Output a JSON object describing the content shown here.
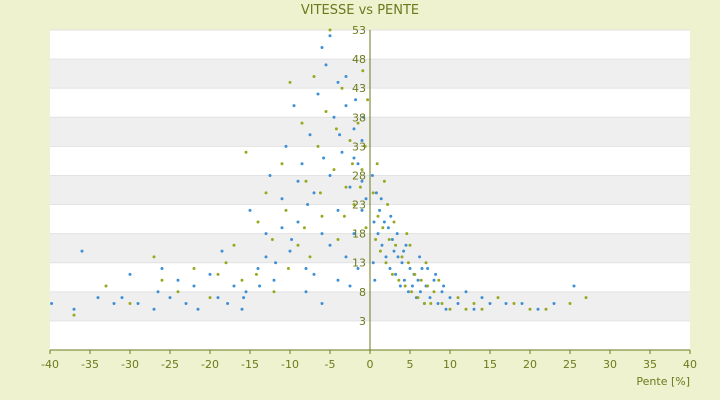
{
  "chart_data": {
    "type": "scatter",
    "title": "VITESSE vs PENTE",
    "xlabel": "Pente [%]",
    "ylabel": "",
    "xlim": [
      -40,
      40
    ],
    "ylim": [
      -2,
      53
    ],
    "x_ticks": [
      -40,
      -35,
      -30,
      -25,
      -20,
      -15,
      -10,
      -5,
      0,
      5,
      10,
      15,
      20,
      25,
      30,
      35,
      40
    ],
    "y_ticks": [
      53,
      48,
      43,
      38,
      33,
      28,
      23,
      18,
      13,
      8,
      3
    ],
    "y_tick_labels": [
      "53",
      "48",
      "43",
      "38",
      "33",
      "28",
      "23",
      "18",
      "13",
      "8",
      "3"
    ],
    "grid": "horizontal alternating bands",
    "colors": {
      "series_blue": "#3d8fd6",
      "series_olive": "#9aa81e",
      "axis": "#6b7a1c",
      "band": "#efefef"
    },
    "series": [
      {
        "color": "#3d8fd6",
        "points": [
          [
            -39.8,
            6
          ],
          [
            -37,
            5
          ],
          [
            -36,
            15
          ],
          [
            -34,
            7
          ],
          [
            -32,
            6
          ],
          [
            -31,
            7
          ],
          [
            -30,
            11
          ],
          [
            -29,
            6
          ],
          [
            -27,
            5
          ],
          [
            -26.5,
            8
          ],
          [
            -26,
            12
          ],
          [
            -25,
            7
          ],
          [
            -24,
            10
          ],
          [
            -23,
            6
          ],
          [
            -22,
            9
          ],
          [
            -21.5,
            5
          ],
          [
            -20,
            11
          ],
          [
            -19,
            7
          ],
          [
            -18.5,
            15
          ],
          [
            -17,
            9
          ],
          [
            -16,
            5
          ],
          [
            -15.5,
            8
          ],
          [
            -15,
            22
          ],
          [
            -14,
            12
          ],
          [
            -13,
            18
          ],
          [
            -12.5,
            28
          ],
          [
            -12,
            10
          ],
          [
            -11,
            24
          ],
          [
            -10.5,
            33
          ],
          [
            -10,
            15
          ],
          [
            -9.5,
            40
          ],
          [
            -9,
            20
          ],
          [
            -8.5,
            30
          ],
          [
            -8,
            12
          ],
          [
            -7.5,
            35
          ],
          [
            -7,
            25
          ],
          [
            -6.5,
            42
          ],
          [
            -6,
            18
          ],
          [
            -5.5,
            47
          ],
          [
            -5,
            28
          ],
          [
            -4.5,
            38
          ],
          [
            -4,
            22
          ],
          [
            -3.5,
            32
          ],
          [
            -3,
            45
          ],
          [
            -2.5,
            26
          ],
          [
            -2,
            36
          ],
          [
            -1.5,
            30
          ],
          [
            -1,
            34
          ],
          [
            -0.5,
            24
          ],
          [
            0.3,
            28
          ],
          [
            0.5,
            20
          ],
          [
            0.8,
            25
          ],
          [
            1,
            18
          ],
          [
            1.2,
            22
          ],
          [
            1.5,
            16
          ],
          [
            1.8,
            20
          ],
          [
            2,
            14
          ],
          [
            2.3,
            19
          ],
          [
            2.5,
            12
          ],
          [
            2.8,
            17
          ],
          [
            3,
            15
          ],
          [
            3.2,
            11
          ],
          [
            3.5,
            14
          ],
          [
            3.8,
            9
          ],
          [
            4,
            13
          ],
          [
            4.3,
            10
          ],
          [
            4.5,
            16
          ],
          [
            4.8,
            8
          ],
          [
            5,
            12
          ],
          [
            5.3,
            9
          ],
          [
            5.5,
            11
          ],
          [
            5.8,
            7
          ],
          [
            6,
            10
          ],
          [
            6.3,
            8
          ],
          [
            6.5,
            12
          ],
          [
            6.8,
            6
          ],
          [
            7,
            9
          ],
          [
            7.5,
            7
          ],
          [
            8,
            10
          ],
          [
            8.5,
            6
          ],
          [
            9,
            8
          ],
          [
            9.5,
            5
          ],
          [
            10,
            7
          ],
          [
            11,
            6
          ],
          [
            12,
            8
          ],
          [
            13,
            5
          ],
          [
            14,
            7
          ],
          [
            15,
            6
          ],
          [
            17,
            6
          ],
          [
            19,
            6
          ],
          [
            21,
            5
          ],
          [
            23,
            6
          ],
          [
            25.5,
            9
          ],
          [
            -8,
            8
          ],
          [
            -6,
            6
          ],
          [
            -4,
            10
          ],
          [
            -3,
            14
          ],
          [
            -2,
            18
          ],
          [
            -1,
            22
          ],
          [
            -1.5,
            12
          ],
          [
            -2.5,
            9
          ],
          [
            -5,
            16
          ],
          [
            -7,
            11
          ],
          [
            -9,
            27
          ],
          [
            -11,
            19
          ],
          [
            -13,
            14
          ],
          [
            -3,
            40
          ],
          [
            -4,
            44
          ],
          [
            -6,
            50
          ],
          [
            -5,
            52
          ],
          [
            -2,
            31
          ],
          [
            -1,
            27
          ],
          [
            0.4,
            13
          ],
          [
            0.6,
            10
          ],
          [
            1.4,
            24
          ],
          [
            2.6,
            21
          ],
          [
            3.4,
            18
          ],
          [
            4.2,
            15
          ],
          [
            6.2,
            14
          ],
          [
            7.2,
            12
          ],
          [
            8.2,
            11
          ],
          [
            9.2,
            9
          ],
          [
            -0.8,
            38
          ],
          [
            -1.8,
            41
          ],
          [
            -3.8,
            35
          ],
          [
            -5.8,
            31
          ],
          [
            -7.8,
            23
          ],
          [
            -9.8,
            17
          ],
          [
            -11.8,
            13
          ],
          [
            -13.8,
            9
          ],
          [
            -15.8,
            7
          ],
          [
            -17.8,
            6
          ]
        ]
      },
      {
        "color": "#9aa81e",
        "points": [
          [
            -37,
            4
          ],
          [
            -33,
            9
          ],
          [
            -30,
            6
          ],
          [
            -27,
            14
          ],
          [
            -26,
            10
          ],
          [
            -24,
            8
          ],
          [
            -22,
            12
          ],
          [
            -20,
            7
          ],
          [
            -19,
            11
          ],
          [
            -18,
            13
          ],
          [
            -17,
            16
          ],
          [
            -16,
            10
          ],
          [
            -15.5,
            32
          ],
          [
            -14,
            20
          ],
          [
            -13,
            25
          ],
          [
            -12,
            8
          ],
          [
            -11,
            30
          ],
          [
            -10.5,
            22
          ],
          [
            -10,
            44
          ],
          [
            -9,
            16
          ],
          [
            -8.5,
            37
          ],
          [
            -8,
            27
          ],
          [
            -7.5,
            14
          ],
          [
            -7,
            45
          ],
          [
            -6.5,
            33
          ],
          [
            -6,
            21
          ],
          [
            -5.5,
            39
          ],
          [
            -5,
            53
          ],
          [
            -4.5,
            29
          ],
          [
            -4,
            17
          ],
          [
            -3.5,
            43
          ],
          [
            -3,
            26
          ],
          [
            -2.5,
            34
          ],
          [
            -2,
            23
          ],
          [
            -1.5,
            37
          ],
          [
            -1,
            29
          ],
          [
            -0.5,
            19
          ],
          [
            0.4,
            25
          ],
          [
            0.7,
            17
          ],
          [
            1,
            21
          ],
          [
            1.3,
            15
          ],
          [
            1.6,
            19
          ],
          [
            2,
            13
          ],
          [
            2.4,
            17
          ],
          [
            2.8,
            11
          ],
          [
            3.2,
            16
          ],
          [
            3.6,
            10
          ],
          [
            4,
            14
          ],
          [
            4.4,
            9
          ],
          [
            4.8,
            13
          ],
          [
            5.2,
            8
          ],
          [
            5.6,
            11
          ],
          [
            6,
            7
          ],
          [
            6.4,
            10
          ],
          [
            6.8,
            6
          ],
          [
            7.2,
            9
          ],
          [
            7.6,
            6
          ],
          [
            8,
            8
          ],
          [
            9,
            6
          ],
          [
            10,
            5
          ],
          [
            11,
            7
          ],
          [
            12,
            5
          ],
          [
            13,
            6
          ],
          [
            14,
            5
          ],
          [
            16,
            7
          ],
          [
            18,
            6
          ],
          [
            20,
            5
          ],
          [
            22,
            5
          ],
          [
            25,
            6
          ],
          [
            27,
            7
          ],
          [
            -0.6,
            33
          ],
          [
            -1.2,
            26
          ],
          [
            -2.2,
            30
          ],
          [
            -3.2,
            21
          ],
          [
            -4.2,
            36
          ],
          [
            -6.2,
            25
          ],
          [
            -8.2,
            19
          ],
          [
            -10.2,
            12
          ],
          [
            -12.2,
            17
          ],
          [
            -14.2,
            11
          ],
          [
            2.2,
            23
          ],
          [
            3,
            20
          ],
          [
            5,
            16
          ],
          [
            7,
            13
          ],
          [
            8.6,
            10
          ],
          [
            4.6,
            18
          ],
          [
            1.8,
            27
          ],
          [
            0.9,
            30
          ],
          [
            -0.3,
            41
          ],
          [
            -0.9,
            46
          ]
        ]
      }
    ]
  }
}
